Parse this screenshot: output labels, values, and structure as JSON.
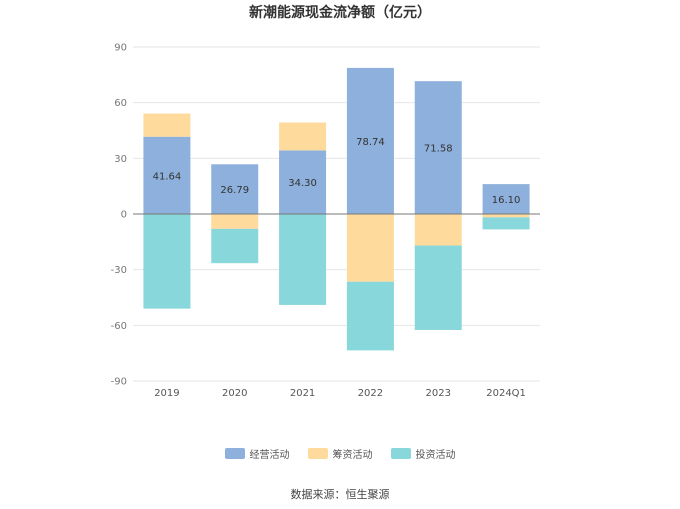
{
  "chart_data": {
    "type": "bar",
    "stacked": true,
    "title": "新潮能源现金流净额（亿元）",
    "categories": [
      "2019",
      "2020",
      "2021",
      "2022",
      "2023",
      "2024Q1"
    ],
    "series": [
      {
        "name": "经营活动",
        "color": "#8eb0dc",
        "values": [
          41.64,
          26.79,
          34.3,
          78.74,
          71.58,
          16.1
        ],
        "labels": [
          "41.64",
          "26.79",
          "34.30",
          "78.74",
          "71.58",
          "16.10"
        ]
      },
      {
        "name": "筹资活动",
        "color": "#fedb9c",
        "values": [
          12.5,
          -8,
          15,
          -36.5,
          -17,
          -1.8
        ]
      },
      {
        "name": "投资活动",
        "color": "#88d7da",
        "values": [
          -51,
          -18.5,
          -49,
          -37,
          -45.5,
          -6.5
        ]
      }
    ],
    "ylim": [
      -90,
      90
    ],
    "yticks": [
      90,
      60,
      30,
      0,
      -30,
      -60,
      -90
    ],
    "grid": true,
    "legend_position": "bottom"
  },
  "source": "数据来源：恒生聚源"
}
